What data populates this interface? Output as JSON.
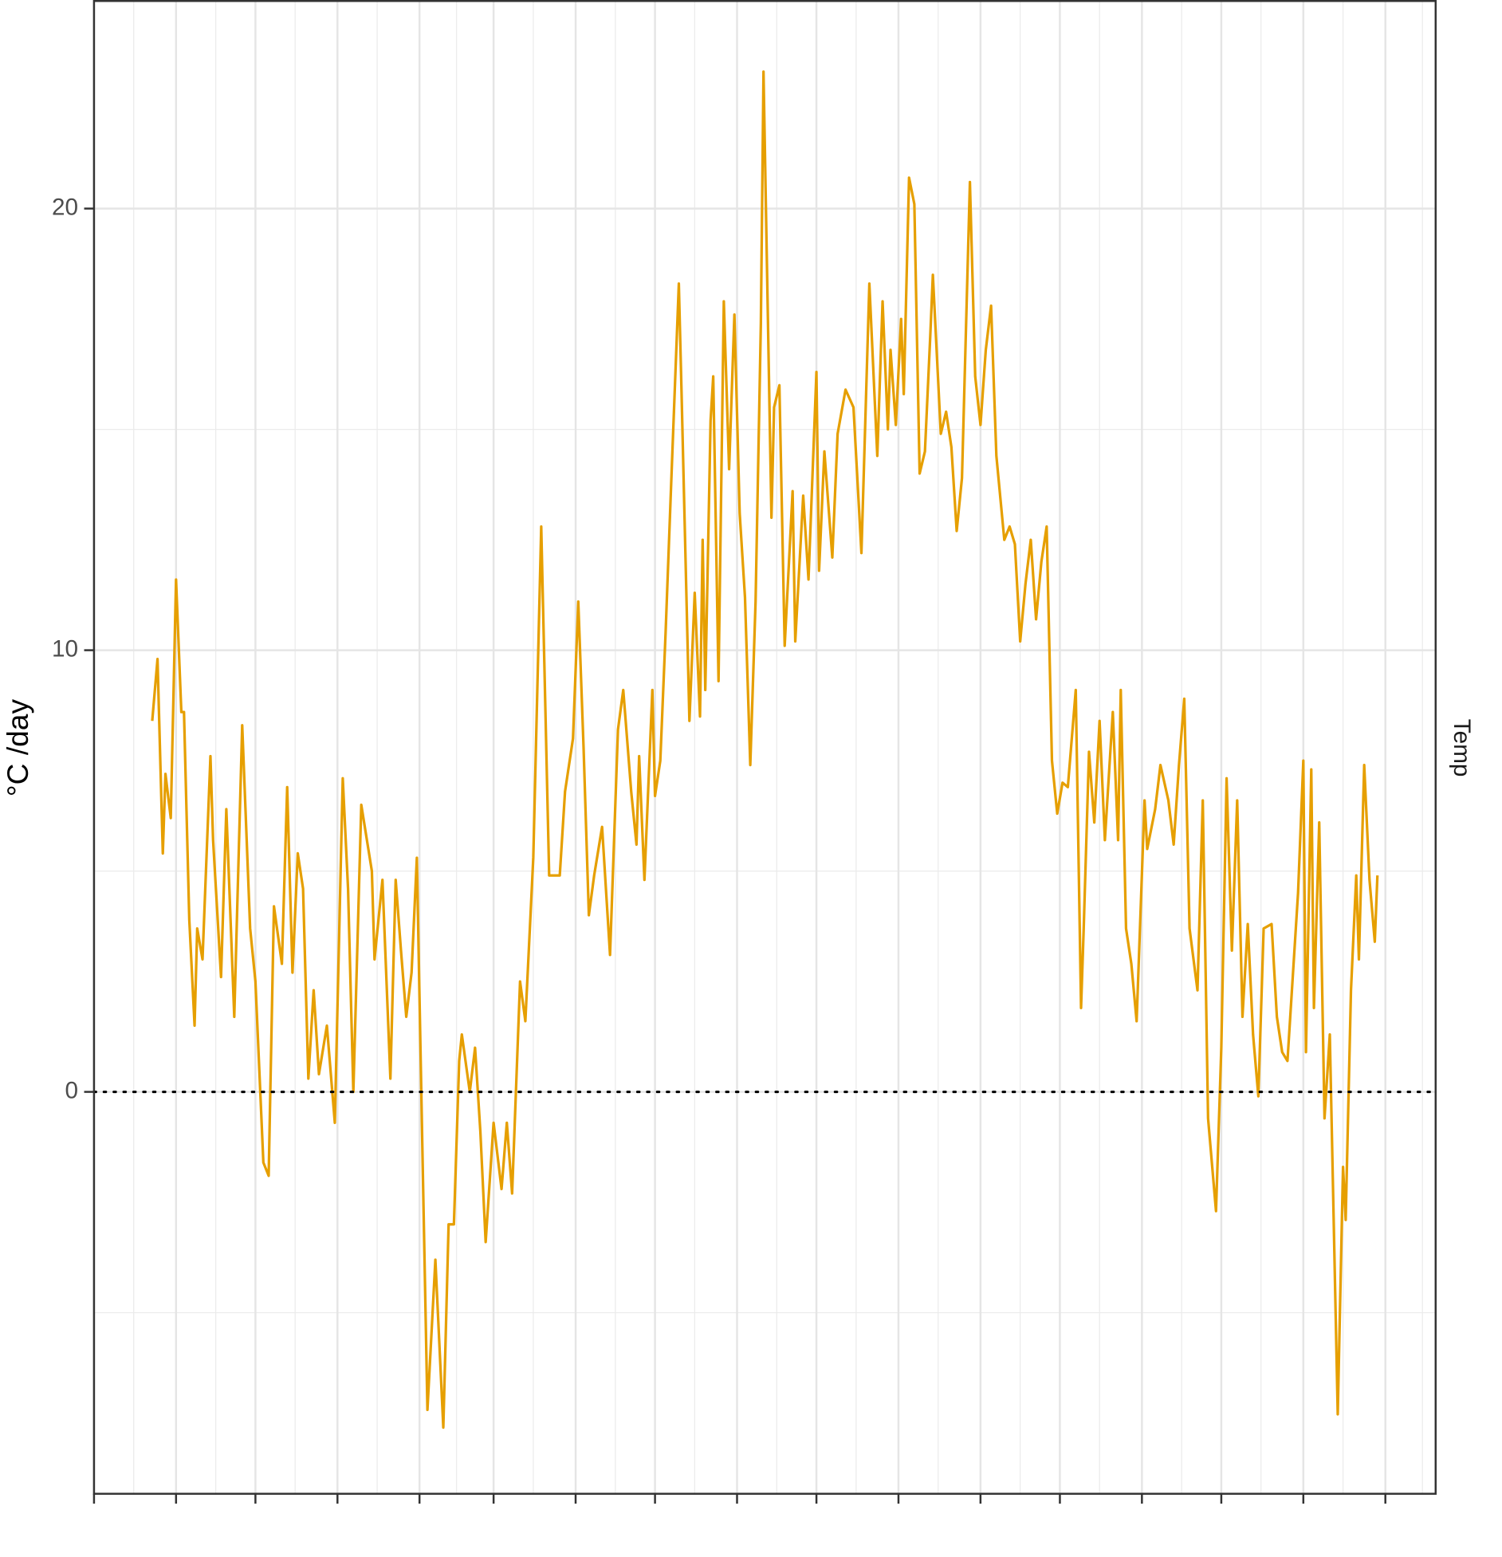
{
  "chart_data": {
    "type": "line",
    "y_label": "°C /day",
    "facet_label": "Temp",
    "color": "#E69F00",
    "hline": 0,
    "grid": true,
    "xlim": [
      0,
      507
    ],
    "ylim": [
      -9.1,
      24.7
    ],
    "xticks": [
      0,
      31,
      61,
      92,
      123,
      151,
      182,
      212,
      243,
      273,
      304,
      335,
      365,
      396,
      426,
      457,
      488
    ],
    "x_minor_ticks": [
      15,
      46,
      76,
      107,
      137,
      166,
      197,
      227,
      258,
      288,
      319,
      350,
      380,
      411,
      441,
      472,
      502
    ],
    "yticks": [
      0,
      10,
      20
    ],
    "y_minor_ticks": [
      -5,
      5,
      15
    ],
    "x": [
      22,
      24,
      26,
      27,
      29,
      31,
      33,
      34,
      36,
      38,
      39,
      41,
      44,
      45,
      48,
      50,
      53,
      56,
      59,
      61,
      64,
      66,
      68,
      71,
      73,
      75,
      77,
      79,
      81,
      83,
      85,
      88,
      91,
      94,
      96,
      98,
      101,
      105,
      106,
      109,
      112,
      114,
      116,
      118,
      120,
      122,
      124,
      126,
      129,
      132,
      134,
      136,
      138,
      139,
      142,
      144,
      146,
      148,
      151,
      154,
      156,
      158,
      161,
      163,
      166,
      169,
      172,
      176,
      178,
      181,
      183,
      185,
      187,
      189,
      192,
      195,
      198,
      200,
      203,
      205,
      206,
      208,
      211,
      212,
      214,
      216,
      218,
      221,
      222,
      225,
      227,
      229,
      230,
      231,
      233,
      234,
      236,
      238,
      240,
      242,
      244,
      246,
      248,
      250,
      252,
      253,
      256,
      257,
      259,
      261,
      264,
      265,
      268,
      270,
      273,
      274,
      276,
      279,
      281,
      284,
      287,
      290,
      293,
      296,
      298,
      300,
      301,
      303,
      305,
      306,
      308,
      310,
      312,
      314,
      316,
      317,
      320,
      322,
      324,
      326,
      328,
      331,
      333,
      335,
      337,
      339,
      341,
      344,
      346,
      348,
      350,
      352,
      354,
      356,
      358,
      360,
      362,
      364,
      366,
      368,
      371,
      373,
      374,
      376,
      378,
      380,
      382,
      385,
      387,
      388,
      390,
      392,
      394,
      397,
      398,
      401,
      403,
      406,
      408,
      410,
      412,
      414,
      417,
      419,
      421,
      424,
      426,
      428,
      430,
      432,
      434,
      436,
      438,
      440,
      442,
      445,
      447,
      449,
      451,
      455,
      457,
      458,
      460,
      461,
      463,
      465,
      467,
      470,
      472,
      473,
      475,
      477,
      478,
      480,
      482,
      484,
      485
    ],
    "values": [
      8.4,
      9.8,
      5.4,
      7.2,
      6.2,
      11.6,
      8.6,
      8.6,
      3.9,
      1.5,
      3.7,
      3.0,
      7.6,
      5.7,
      2.6,
      6.4,
      1.7,
      8.3,
      3.7,
      2.5,
      -1.6,
      -1.9,
      4.2,
      2.9,
      6.9,
      2.7,
      5.4,
      4.6,
      0.3,
      2.3,
      0.4,
      1.5,
      -0.7,
      7.1,
      4.6,
      0,
      6.5,
      5.0,
      3.0,
      4.8,
      0.3,
      4.8,
      3.2,
      1.7,
      2.7,
      5.3,
      -1.0,
      -7.2,
      -3.8,
      -7.6,
      -3.0,
      -3.0,
      0.7,
      1.3,
      0,
      1.0,
      -0.9,
      -3.4,
      -0.7,
      -2.2,
      -0.7,
      -2.3,
      2.5,
      1.6,
      5.3,
      12.8,
      4.9,
      4.9,
      6.8,
      8.0,
      11.1,
      7.8,
      4.0,
      4.9,
      6.0,
      3.1,
      8.2,
      9.1,
      6.8,
      5.6,
      7.6,
      4.8,
      9.1,
      6.7,
      7.5,
      10.4,
      13.6,
      18.3,
      15.9,
      8.4,
      11.3,
      8.5,
      12.5,
      9.1,
      15.2,
      16.2,
      9.3,
      17.9,
      14.1,
      17.6,
      13.1,
      11.2,
      7.4,
      11.1,
      17.4,
      23.1,
      13.0,
      15.5,
      16.0,
      10.1,
      13.6,
      10.2,
      13.5,
      11.6,
      16.3,
      11.8,
      14.5,
      12.1,
      14.9,
      15.9,
      15.5,
      12.2,
      18.3,
      14.4,
      17.9,
      15.0,
      16.8,
      15.1,
      17.5,
      15.8,
      20.7,
      20.1,
      14.0,
      14.5,
      17.1,
      18.5,
      14.9,
      15.4,
      14.6,
      12.7,
      13.9,
      20.6,
      16.2,
      15.1,
      16.8,
      17.8,
      14.4,
      12.5,
      12.8,
      12.4,
      10.2,
      11.5,
      12.5,
      10.7,
      12.0,
      12.8,
      7.5,
      6.3,
      7.0,
      6.9,
      9.1,
      1.9,
      3.7,
      7.7,
      6.1,
      8.4,
      5.7,
      8.6,
      5.7,
      9.1,
      3.7,
      2.9,
      1.6,
      6.6,
      5.5,
      6.4,
      7.4,
      6.6,
      5.6,
      7.4,
      8.9,
      3.7,
      2.3,
      6.6,
      -0.6,
      -2.7,
      1.0,
      7.1,
      3.2,
      6.6,
      1.7,
      3.8,
      1.3,
      -0.1,
      3.7,
      3.8,
      1.7,
      0.9,
      0.7,
      4.5,
      7.5,
      0.9,
      7.3,
      1.9,
      6.1,
      -0.6,
      1.3,
      -7.3,
      -1.7,
      -2.9,
      2.3,
      4.9,
      3.0,
      7.4,
      4.8,
      3.4,
      4.9
    ]
  }
}
